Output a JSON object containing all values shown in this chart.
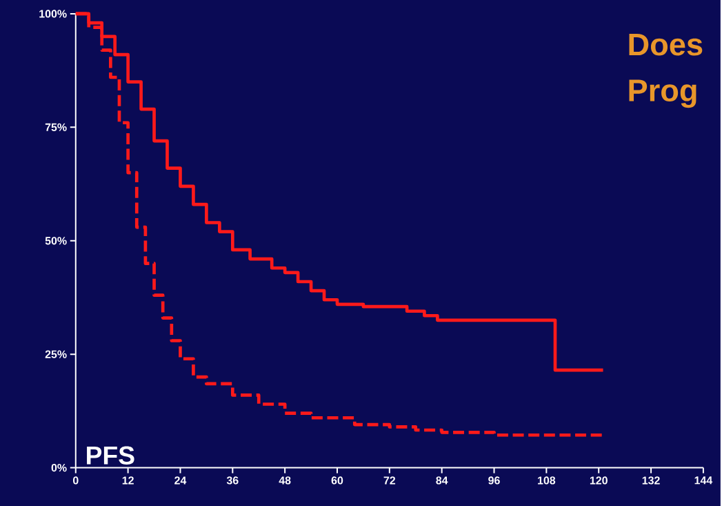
{
  "chart_data": {
    "type": "step",
    "title": "Does Prog",
    "annotations": [
      "PFS"
    ],
    "xlim": [
      0,
      144
    ],
    "ylim": [
      0,
      100
    ],
    "xticks": [
      0,
      12,
      24,
      36,
      48,
      60,
      72,
      84,
      96,
      108,
      120,
      132,
      144
    ],
    "yticks": [
      {
        "value": 0,
        "label": "0%"
      },
      {
        "value": 25,
        "label": "25%"
      },
      {
        "value": 50,
        "label": "50%"
      },
      {
        "value": 75,
        "label": "75%"
      },
      {
        "value": 100,
        "label": "100%"
      }
    ],
    "series": [
      {
        "color": "#ff1a1a",
        "line_style": "solid",
        "x": [
          0,
          3,
          6,
          9,
          12,
          15,
          18,
          21,
          24,
          27,
          30,
          33,
          36,
          40,
          45,
          48,
          51,
          54,
          57,
          60,
          66,
          72,
          76,
          80,
          83,
          110,
          121
        ],
        "values": [
          100,
          98,
          95,
          91,
          85,
          79,
          72,
          66,
          62,
          58,
          54,
          52,
          48,
          46,
          44,
          43,
          41,
          39,
          37,
          36,
          35.5,
          35.5,
          34.5,
          33.5,
          32.5,
          21.5,
          21.5
        ]
      },
      {
        "color": "#ff1a1a",
        "line_style": "dashed",
        "x": [
          0,
          3,
          6,
          8,
          10,
          12,
          14,
          16,
          18,
          20,
          22,
          24,
          27,
          30,
          36,
          42,
          48,
          54,
          60,
          64,
          72,
          78,
          84,
          96,
          121
        ],
        "values": [
          100,
          97,
          92,
          86,
          76,
          65,
          53,
          45,
          38,
          33,
          28,
          24,
          20,
          18.5,
          16,
          14,
          12,
          11,
          11,
          9.5,
          9,
          8.3,
          7.8,
          7.2,
          7.2
        ]
      }
    ]
  }
}
